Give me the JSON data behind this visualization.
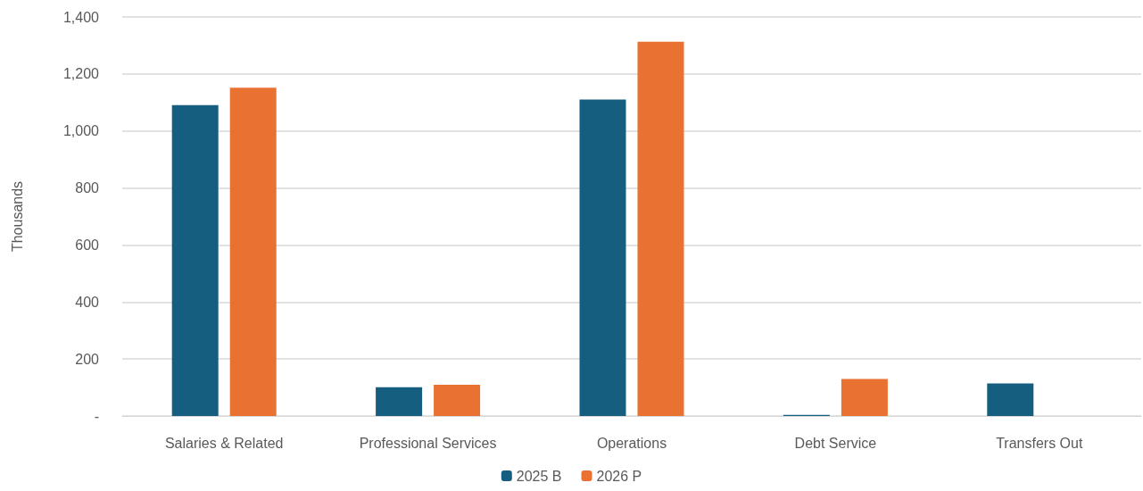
{
  "chart_data": {
    "type": "bar",
    "ylabel": "Thousands",
    "categories": [
      "Salaries & Related",
      "Professional Services",
      "Operations",
      "Debt Service",
      "Transfers Out"
    ],
    "series": [
      {
        "name": "2025 B",
        "color": "#165e80",
        "values": [
          1091,
          101,
          1110,
          4,
          114
        ]
      },
      {
        "name": "2026 P",
        "color": "#e97132",
        "values": [
          1152,
          110,
          1313,
          130,
          null
        ]
      }
    ],
    "ylim": [
      0,
      1400
    ],
    "yticks": [
      {
        "value": 0,
        "label": "-"
      },
      200,
      400,
      600,
      800,
      {
        "value": 1000,
        "label": "1,000"
      },
      {
        "value": 1200,
        "label": "1,200"
      },
      {
        "value": 1400,
        "label": "1,400"
      }
    ],
    "grid": "y",
    "legend": "bottom"
  }
}
